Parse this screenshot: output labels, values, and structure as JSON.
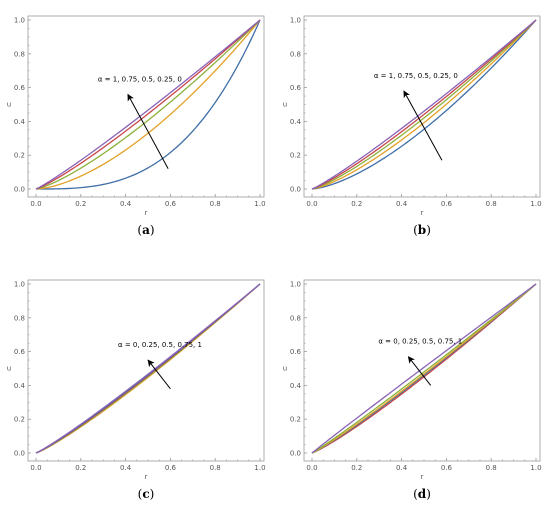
{
  "chart_data": [
    {
      "panel_label_open": "(",
      "panel_letter": "a",
      "panel_label_close": ")",
      "type": "line",
      "xlabel": "r",
      "ylabel": "u",
      "xlim": [
        0,
        1
      ],
      "ylim": [
        0,
        1
      ],
      "xticks": [
        "0.0",
        "0.2",
        "0.4",
        "0.6",
        "0.8",
        "1.0"
      ],
      "yticks": [
        "0.0",
        "0.2",
        "0.4",
        "0.6",
        "0.8",
        "1.0"
      ],
      "annotation": "α = 1, 0.75, 0.5, 0.25, 0",
      "arrow": {
        "from": [
          0.59,
          0.12
        ],
        "to": [
          0.41,
          0.56
        ]
      },
      "series": [
        {
          "color": "#3f6ea8",
          "exponent": 3.0
        },
        {
          "color": "#e3a027",
          "exponent": 1.6
        },
        {
          "color": "#8cb03a",
          "exponent": 1.3
        },
        {
          "color": "#c8474b",
          "exponent": 1.17
        },
        {
          "color": "#8a63b8",
          "exponent": 1.1
        }
      ]
    },
    {
      "panel_label_open": "(",
      "panel_letter": "b",
      "panel_label_close": ")",
      "type": "line",
      "xlabel": "r",
      "ylabel": "u",
      "xlim": [
        0,
        1
      ],
      "ylim": [
        0,
        1
      ],
      "xticks": [
        "0.0",
        "0.2",
        "0.4",
        "0.6",
        "0.8",
        "1.0"
      ],
      "yticks": [
        "0.0",
        "0.2",
        "0.4",
        "0.6",
        "0.8",
        "1.0"
      ],
      "annotation": "α = 1, 0.75, 0.5, 0.25, 0",
      "arrow": {
        "from": [
          0.58,
          0.17
        ],
        "to": [
          0.41,
          0.58
        ]
      },
      "series": [
        {
          "color": "#3f6ea8",
          "exponent": 1.5
        },
        {
          "color": "#e3a027",
          "exponent": 1.35
        },
        {
          "color": "#8cb03a",
          "exponent": 1.25
        },
        {
          "color": "#c8474b",
          "exponent": 1.18
        },
        {
          "color": "#8a63b8",
          "exponent": 1.12
        }
      ]
    },
    {
      "panel_label_open": "(",
      "panel_letter": "c",
      "panel_label_close": ")",
      "type": "line",
      "xlabel": "r",
      "ylabel": "u",
      "xlim": [
        0,
        1
      ],
      "ylim": [
        0,
        1
      ],
      "xticks": [
        "0.0",
        "0.2",
        "0.4",
        "0.6",
        "0.8",
        "1.0"
      ],
      "yticks": [
        "0.0",
        "0.2",
        "0.4",
        "0.6",
        "0.8",
        "1.0"
      ],
      "annotation": "α = 0, 0.25, 0.5, 0.75, 1",
      "arrow": {
        "from": [
          0.6,
          0.38
        ],
        "to": [
          0.5,
          0.55
        ]
      },
      "series": [
        {
          "color": "#e3a027",
          "exponent": 1.16
        },
        {
          "color": "#8cb03a",
          "exponent": 1.145
        },
        {
          "color": "#c8474b",
          "exponent": 1.13
        },
        {
          "color": "#3f6ea8",
          "exponent": 1.115
        },
        {
          "color": "#8a63b8",
          "exponent": 1.1
        }
      ]
    },
    {
      "panel_label_open": "(",
      "panel_letter": "d",
      "panel_label_close": ")",
      "type": "line",
      "xlabel": "r",
      "ylabel": "u",
      "xlim": [
        0,
        1
      ],
      "ylim": [
        0,
        1
      ],
      "xticks": [
        "0.0",
        "0.2",
        "0.4",
        "0.6",
        "0.8",
        "1.0"
      ],
      "yticks": [
        "0.0",
        "0.2",
        "0.4",
        "0.6",
        "0.8",
        "1.0"
      ],
      "annotation": "α = 0, 0.25, 0.5, 0.75, 1",
      "arrow": {
        "from": [
          0.53,
          0.4
        ],
        "to": [
          0.43,
          0.57
        ]
      },
      "series": [
        {
          "color": "#c8474b",
          "exponent": 1.15
        },
        {
          "color": "#3f6ea8",
          "exponent": 1.12
        },
        {
          "color": "#e3a027",
          "exponent": 1.1
        },
        {
          "color": "#8cb03a",
          "exponent": 1.06
        },
        {
          "color": "#8a63b8",
          "exponent": 0.98
        }
      ]
    }
  ]
}
